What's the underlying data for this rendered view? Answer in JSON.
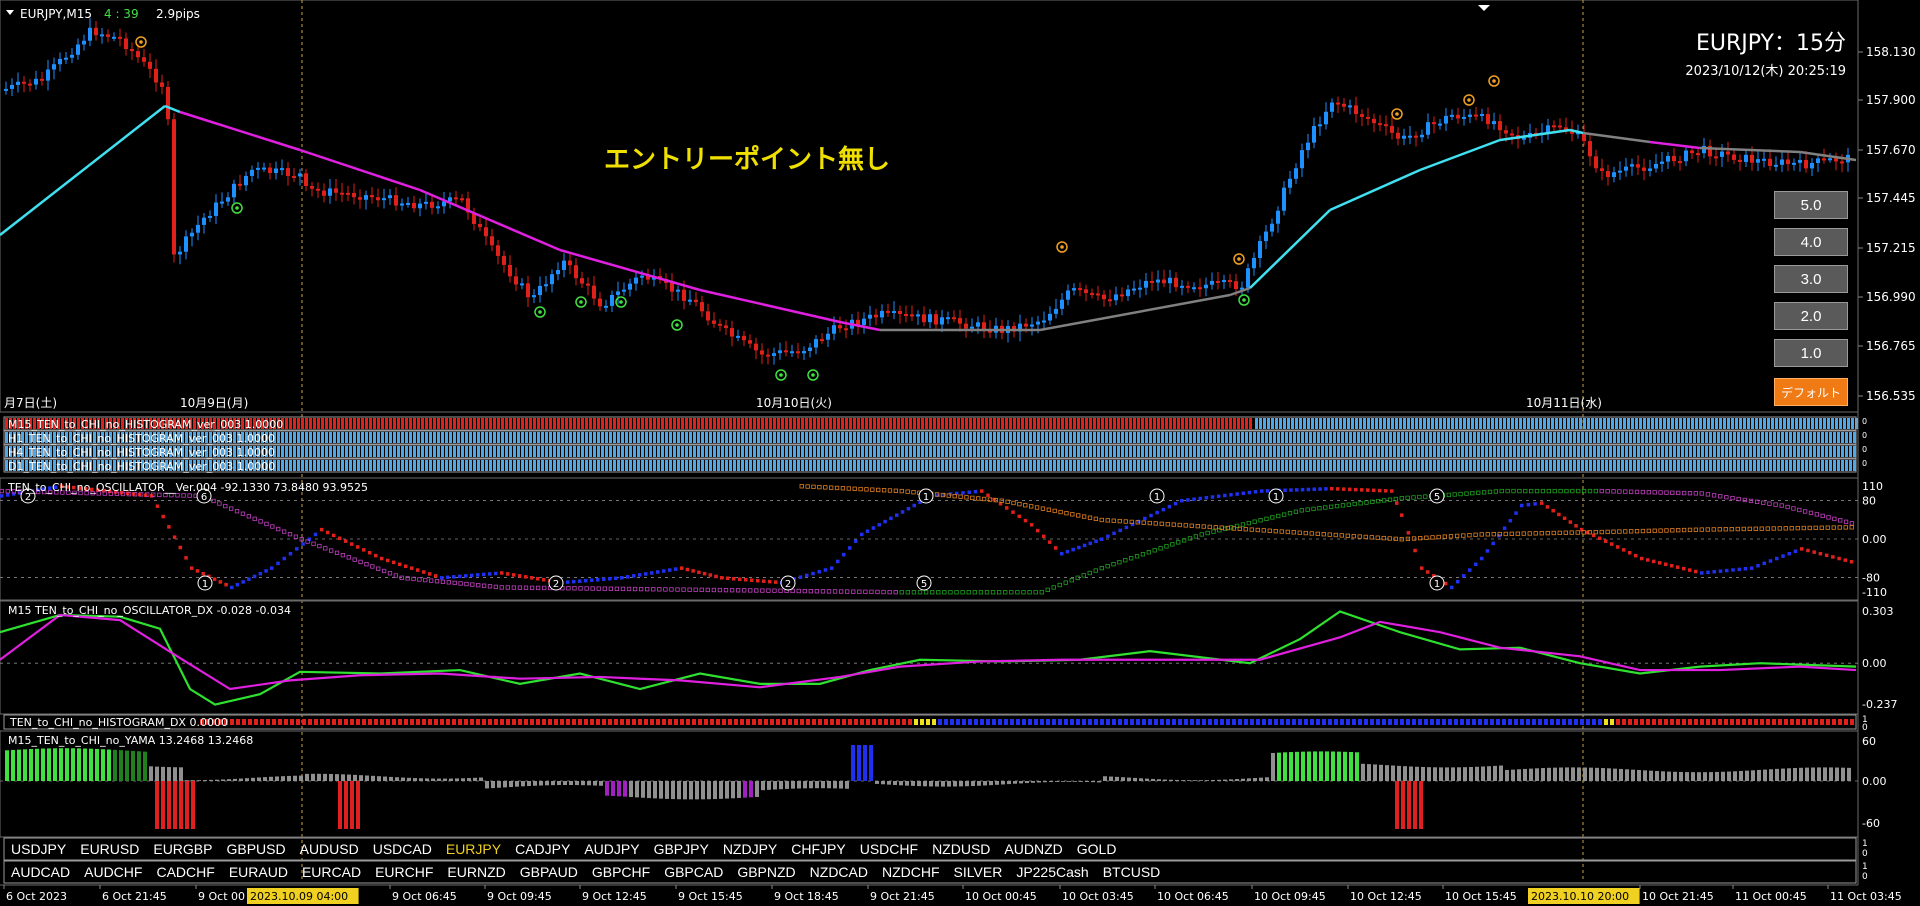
{
  "chart": {
    "symbol_label": "EURJPY,M15",
    "countdown": "4 : 39",
    "spread": "2.9pips",
    "title": "EURJPY：15分",
    "datetime": "2023/10/12(木) 20:25:19",
    "entry_note": "エントリーポイント無し",
    "price_ticks": [
      "158.130",
      "157.900",
      "157.670",
      "157.445",
      "157.215",
      "156.990",
      "156.765",
      "156.535"
    ],
    "date_labels": [
      "月7日(土)",
      "10月9日(月)",
      "10月10日(火)",
      "10月11日(水)"
    ]
  },
  "side_buttons": {
    "b5": "5.0",
    "b4": "4.0",
    "b3": "3.0",
    "b2": "2.0",
    "b1": "1.0",
    "default": "デフォルト"
  },
  "histogram_rows": {
    "m15": "M15_TEN_to_CHI_no_HISTOGRAM_ver_003 1.0000",
    "h1": "H1_TEN_to_CHI_no_HISTOGRAM_ver_003 1.0000",
    "h4": "H4_TEN_to_CHI_no_HISTOGRAM_ver_003 1.0000",
    "d1": "D1_TEN_to_CHI_no_HISTOGRAM_ver_003 1.0000",
    "row_scale": "0"
  },
  "oscillator": {
    "label": "TEN_to_CHI_no_OSCILLATOR__Ver.004 -92.1330 73.8480 93.9525",
    "ticks": [
      "110",
      "80",
      "0.00",
      "-80",
      "-110"
    ]
  },
  "oscillator_dx": {
    "label": "M15 TEN_to_CHI_no_OSCILLATOR_DX -0.028 -0.034",
    "ticks": [
      "0.303",
      "0.00",
      "-0.237"
    ]
  },
  "histogram_dx": {
    "label": "TEN_to_CHI_no_HISTOGRAM_DX 0.0000",
    "scale_top": "1",
    "scale_bottom": "0"
  },
  "yama": {
    "label": "M15_TEN_to_CHI_no_YAMA 13.2468 13.2468",
    "ticks": [
      "60",
      "0.00",
      "-60"
    ]
  },
  "pairs_row1": [
    "USDJPY",
    "EURUSD",
    "EURGBP",
    "GBPUSD",
    "AUDUSD",
    "USDCAD",
    "EURJPY",
    "CADJPY",
    "AUDJPY",
    "GBPJPY",
    "NZDJPY",
    "CHFJPY",
    "USDCHF",
    "NZDUSD",
    "AUDNZD",
    "GOLD"
  ],
  "pairs_row2": [
    "AUDCAD",
    "AUDCHF",
    "CADCHF",
    "EURAUD",
    "EURCAD",
    "EURCHF",
    "EURNZD",
    "GBPAUD",
    "GBPCHF",
    "GBPCAD",
    "GBPNZD",
    "NZDCAD",
    "NZDCHF",
    "SILVER",
    "JP225Cash",
    "BTCUSD"
  ],
  "active_pair": "EURJPY",
  "pair_row_scale": {
    "top": "1",
    "bottom": "0"
  },
  "time_axis": [
    "6 Oct 2023",
    "6 Oct 21:45",
    "9 Oct 00",
    "2023.10.09 04:00",
    "9 Oct 06:45",
    "9 Oct 09:45",
    "9 Oct 12:45",
    "9 Oct 15:45",
    "9 Oct 18:45",
    "9 Oct 21:45",
    "10 Oct 00:45",
    "10 Oct 03:45",
    "10 Oct 06:45",
    "10 Oct 09:45",
    "10 Oct 12:45",
    "10 Oct 15:45",
    "2023.10.10 20:00",
    "10 Oct 21:45",
    "11 Oct 00:45",
    "11 Oct 03:45"
  ],
  "colors": {
    "bull": "#1e90ff",
    "bear": "#e0201a",
    "ma_up": "#40e0f0",
    "ma_down": "#e020e0",
    "ma_flat": "#808080",
    "highlight": "#f0d020",
    "accent": "#f07a14"
  }
}
